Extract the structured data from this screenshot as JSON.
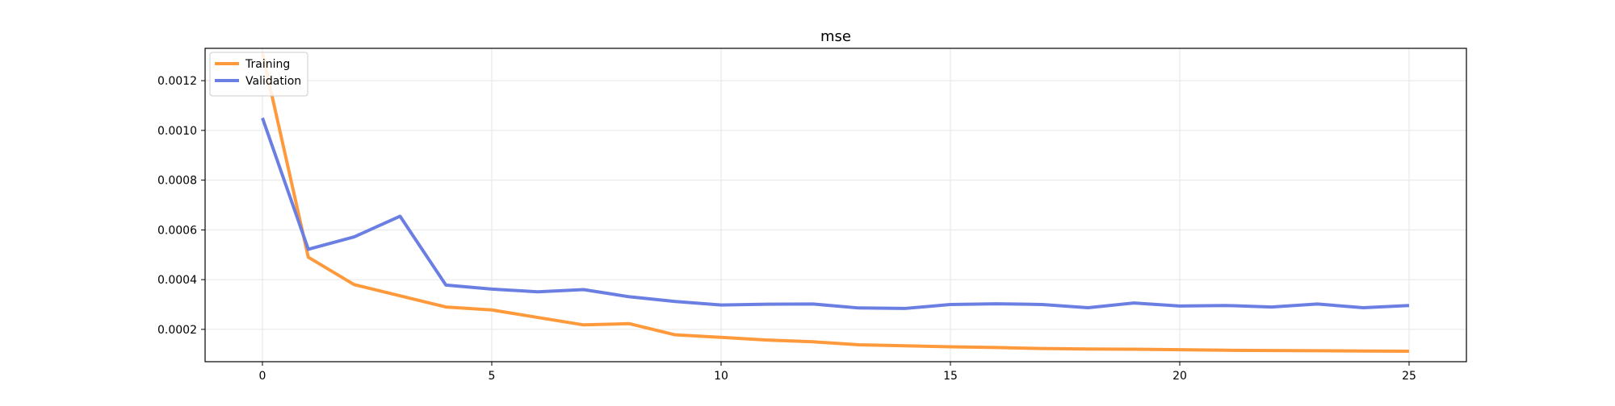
{
  "chart_data": {
    "type": "line",
    "title": "mse",
    "xlabel": "",
    "ylabel": "",
    "x": [
      0,
      1,
      2,
      3,
      4,
      5,
      6,
      7,
      8,
      9,
      10,
      11,
      12,
      13,
      14,
      15,
      16,
      17,
      18,
      19,
      20,
      21,
      22,
      23,
      24,
      25
    ],
    "xlim": [
      -1.25,
      26.25
    ],
    "ylim": [
      7e-05,
      0.00133
    ],
    "x_ticks": [
      0,
      5,
      10,
      15,
      20,
      25
    ],
    "x_tick_labels": [
      "0",
      "5",
      "10",
      "15",
      "20",
      "25"
    ],
    "y_ticks": [
      0.0002,
      0.0004,
      0.0006,
      0.0008,
      0.001,
      0.0012
    ],
    "y_tick_labels": [
      "0.0002",
      "0.0004",
      "0.0006",
      "0.0008",
      "0.0010",
      "0.0012"
    ],
    "grid": true,
    "legend_position": "top-left",
    "series": [
      {
        "name": "Training",
        "color": "#ff9a3c",
        "values": [
          0.00131,
          0.00049,
          0.00038,
          0.000335,
          0.00029,
          0.000278,
          0.000248,
          0.000218,
          0.000223,
          0.000178,
          0.000168,
          0.000157,
          0.00015,
          0.000138,
          0.000134,
          0.00013,
          0.000127,
          0.000123,
          0.000121,
          0.00012,
          0.000118,
          0.000116,
          0.000115,
          0.000114,
          0.000113,
          0.000112
        ]
      },
      {
        "name": "Validation",
        "color": "#6b7fe3",
        "values": [
          0.00105,
          0.000522,
          0.000572,
          0.000655,
          0.000378,
          0.000362,
          0.000351,
          0.00036,
          0.000331,
          0.000312,
          0.000298,
          0.000301,
          0.000302,
          0.000286,
          0.000284,
          0.0003,
          0.000303,
          0.0003,
          0.000287,
          0.000306,
          0.000294,
          0.000296,
          0.00029,
          0.000302,
          0.000287,
          0.000296
        ]
      }
    ]
  }
}
